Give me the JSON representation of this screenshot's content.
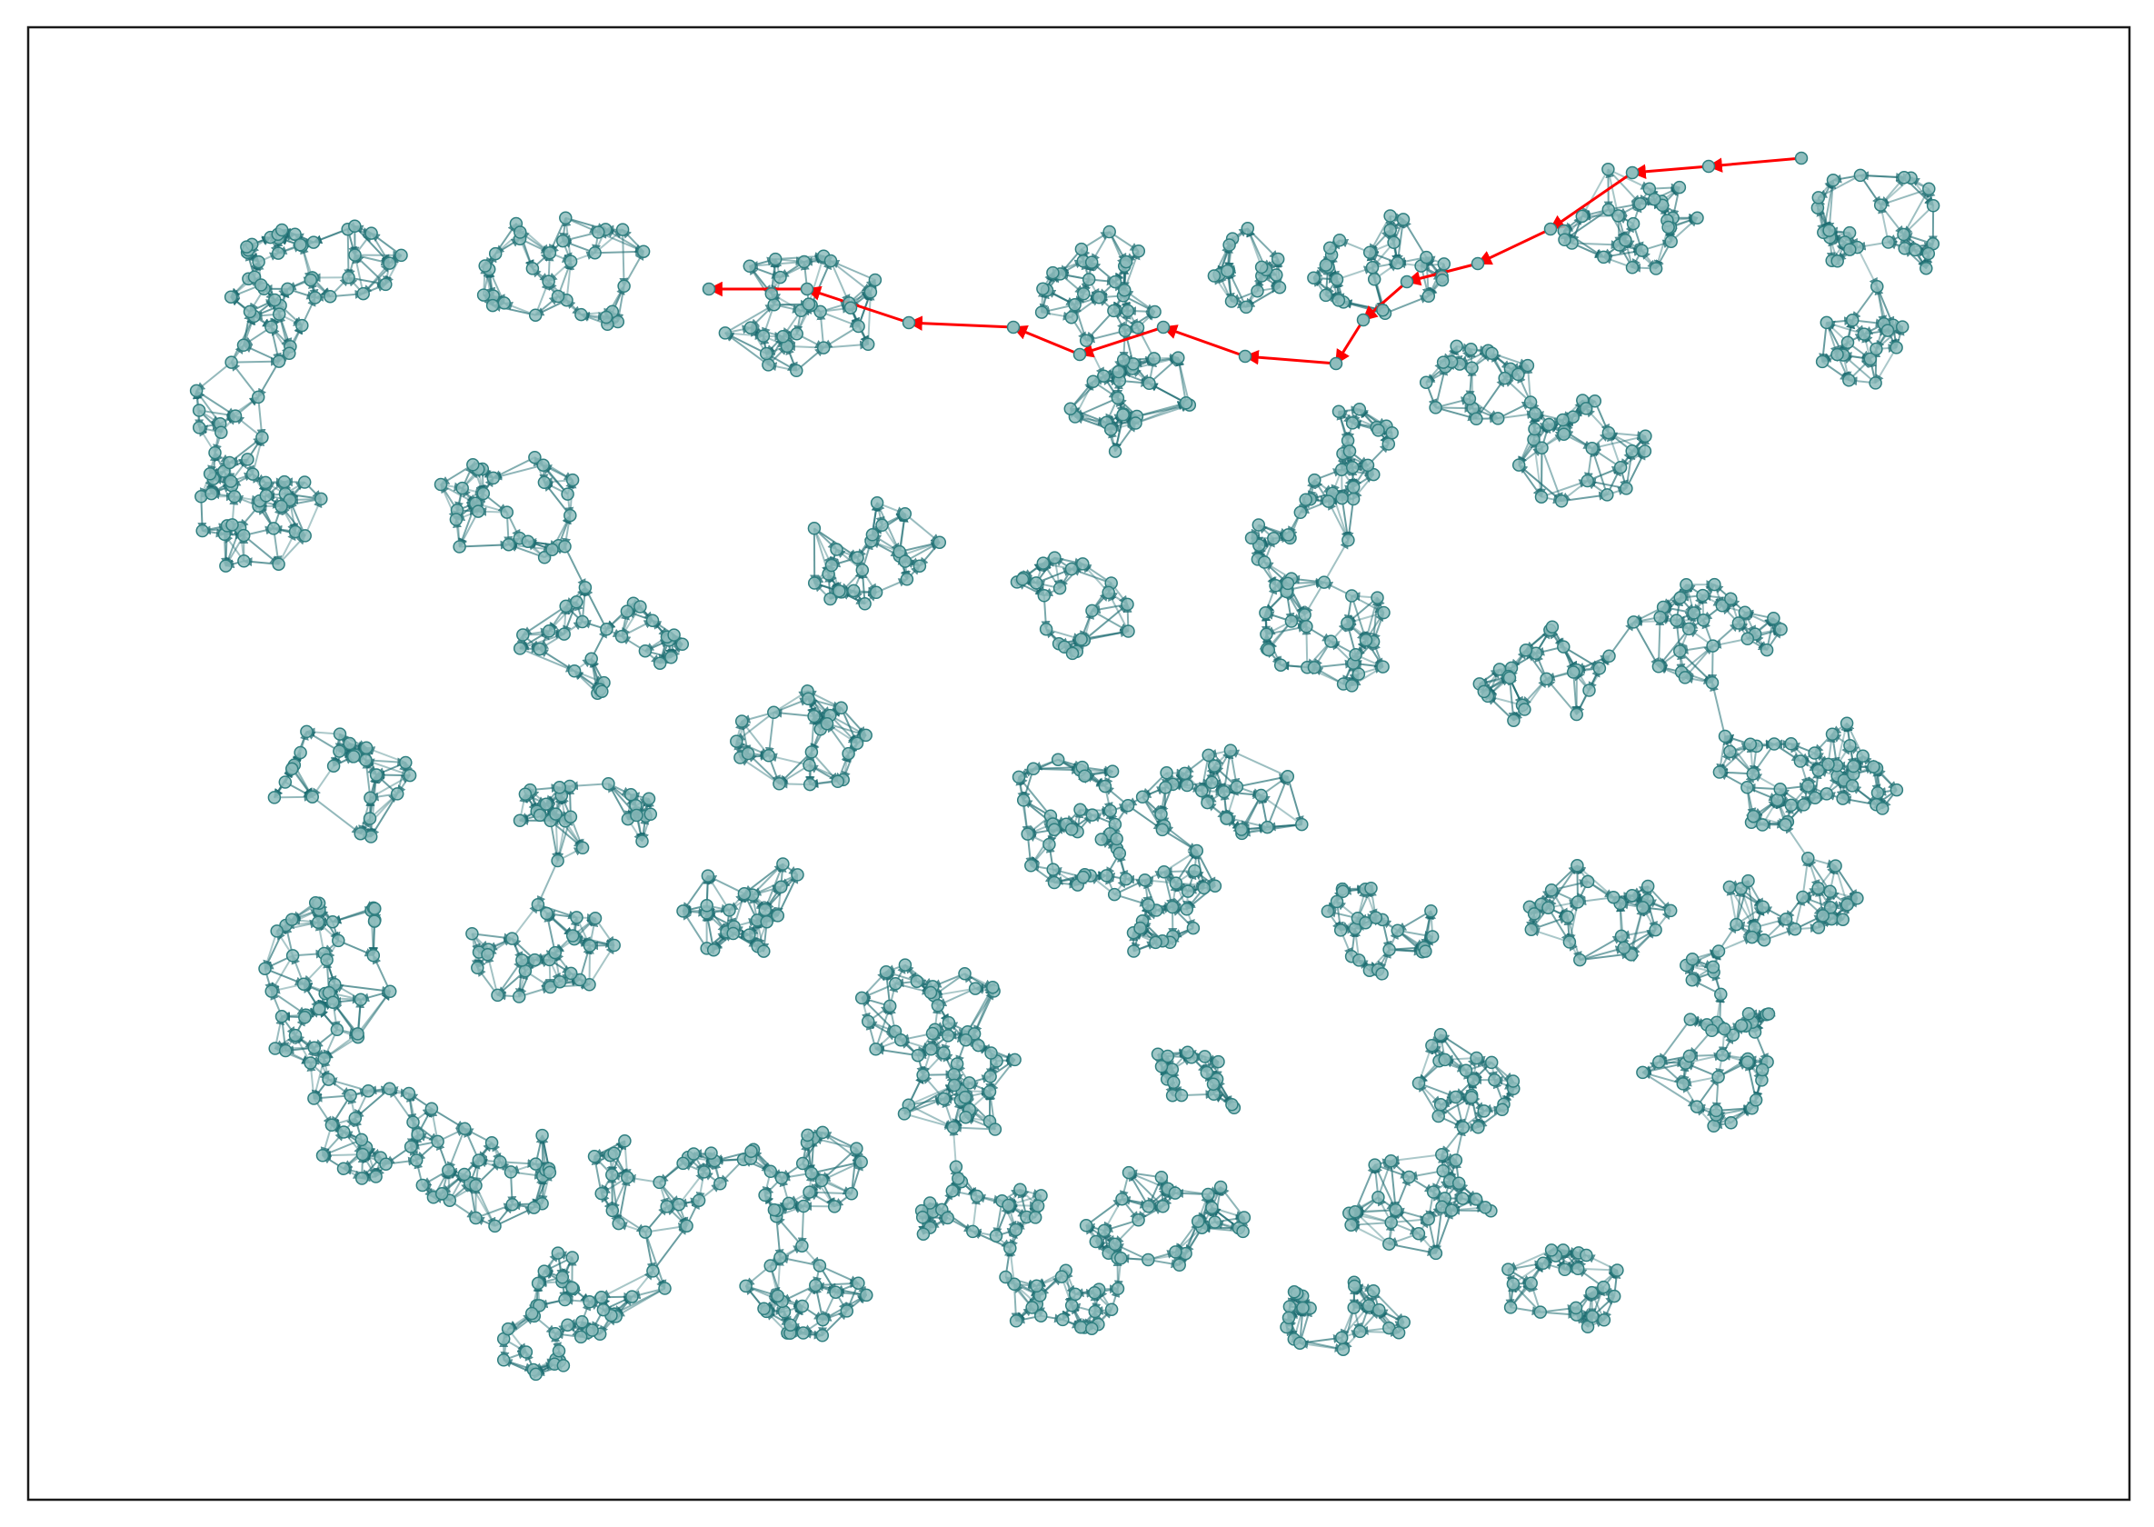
{
  "diagram": {
    "type": "directed-network-graph",
    "frame_visible": true,
    "axes_ticks_visible": false,
    "colors": {
      "background": "#ffffff",
      "frame": "#1a1a1a",
      "edge": "#1c6b70",
      "node_fill": "#8fbdbd",
      "node_stroke": "#2f7f80",
      "highlight_path": "#ff0000"
    },
    "highlighted_path": {
      "direction": "east-to-west",
      "color": "#ff0000"
    }
  }
}
